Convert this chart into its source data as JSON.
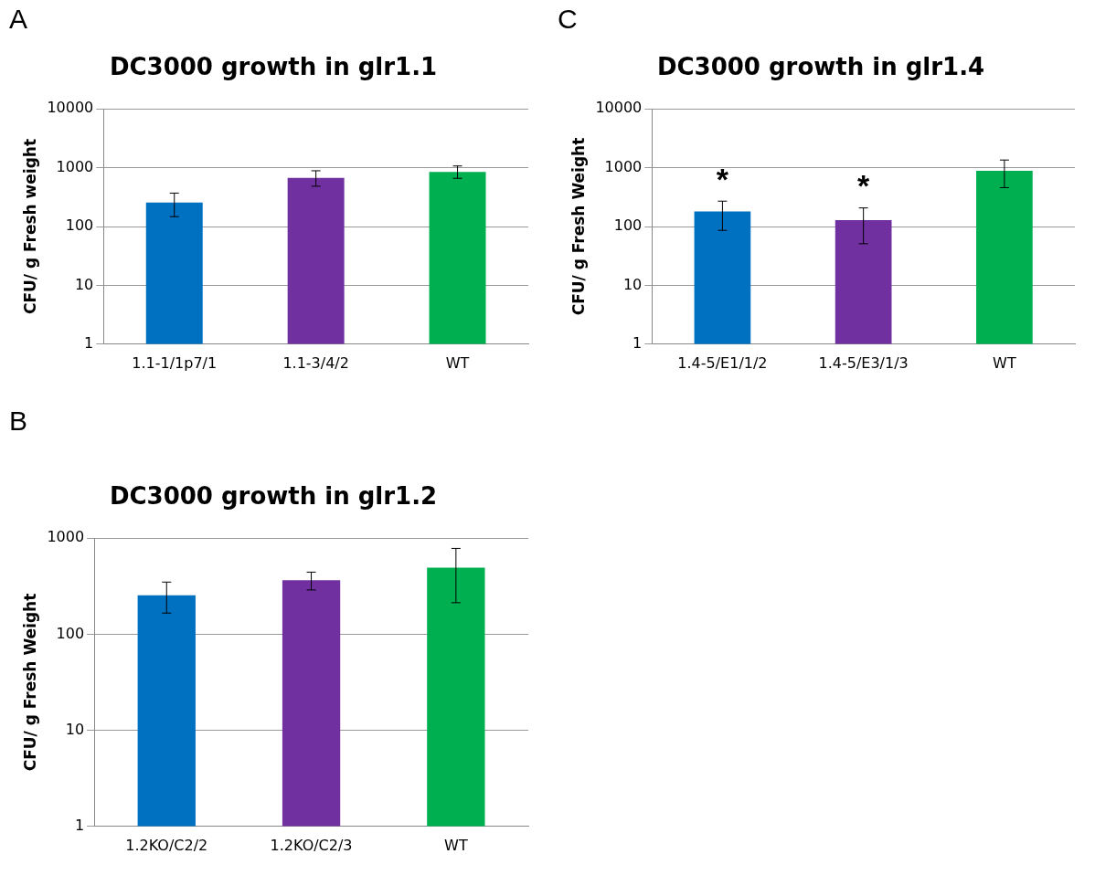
{
  "chart_data": [
    {
      "type": "bar",
      "title": "DC3000 growth in glr1.1",
      "ylabel": "CFU/ g Fresh weight",
      "annotations": [
        "A"
      ],
      "categories": [
        "1.1-1/1p7/1",
        "1.1-3/4/2",
        "WT"
      ],
      "values": [
        256,
        670,
        850
      ],
      "colors": [
        "#0070c0",
        "#7030a0",
        "#00b050"
      ],
      "errors": [
        [
          147,
          370
        ],
        [
          484,
          887
        ],
        [
          660,
          1070
        ]
      ],
      "log": "y",
      "ylim": [
        1,
        10000
      ],
      "yticks": [
        1,
        10,
        100,
        1000,
        10000
      ],
      "grid": "y",
      "legend": false
    },
    {
      "type": "bar",
      "title": "DC3000 growth in glr1.4",
      "ylabel": "CFU/ g Fresh Weight",
      "annotations": [
        "C",
        "*",
        "*"
      ],
      "categories": [
        "1.4-5/E1/1/2",
        "1.4-5/E3/1/3",
        "WT"
      ],
      "values": [
        181,
        129,
        885
      ],
      "colors": [
        "#0070c0",
        "#7030a0",
        "#00b050"
      ],
      "errors": [
        [
          86,
          270
        ],
        [
          51,
          207
        ],
        [
          458,
          1350
        ]
      ],
      "log": "y",
      "ylim": [
        1,
        10000
      ],
      "yticks": [
        1,
        10,
        100,
        1000,
        10000
      ],
      "grid": "y",
      "legend": false
    },
    {
      "type": "bar",
      "title": "DC3000 growth in glr1.2",
      "ylabel": "CFU/ g Fresh Weight",
      "annotations": [
        "B"
      ],
      "categories": [
        "1.2KO/C2/2",
        "1.2KO/C2/3",
        "WT"
      ],
      "values": [
        254,
        364,
        493
      ],
      "colors": [
        "#0070c0",
        "#7030a0",
        "#00b050"
      ],
      "errors": [
        [
          166,
          349
        ],
        [
          289,
          443
        ],
        [
          213,
          782
        ]
      ],
      "log": "y",
      "ylim": [
        1,
        1000
      ],
      "yticks": [
        1,
        10,
        100,
        1000
      ],
      "grid": "y",
      "legend": false
    }
  ]
}
